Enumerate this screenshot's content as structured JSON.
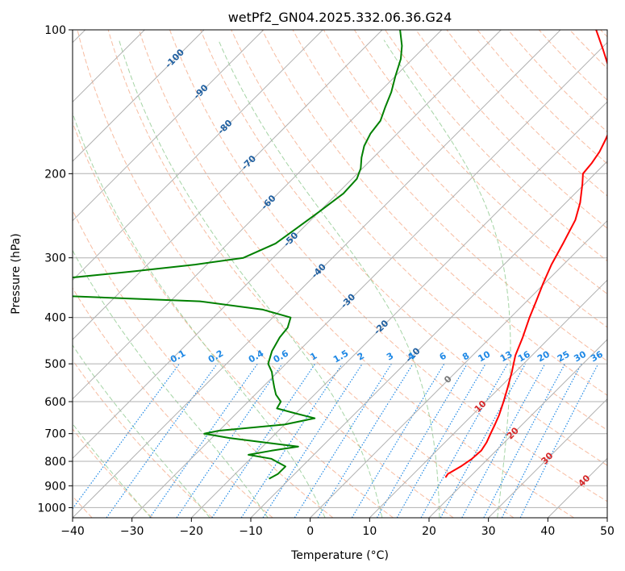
{
  "chart_data": {
    "type": "line",
    "title": "wetPf2_GN04.2025.332.06.36.G24",
    "xlabel": "Temperature (°C)",
    "ylabel": "Pressure (hPa)",
    "xlim": [
      -40,
      50
    ],
    "ylim": [
      1050,
      100
    ],
    "y_scale": "log",
    "grid": true,
    "x_ticks": [
      -40,
      -30,
      -20,
      -10,
      0,
      10,
      20,
      30,
      40,
      50
    ],
    "x_tick_labels": [
      "−40",
      "−30",
      "−20",
      "−10",
      "0",
      "10",
      "20",
      "30",
      "40",
      "50"
    ],
    "y_ticks": [
      1000,
      900,
      800,
      700,
      600,
      500,
      400,
      300,
      200,
      100
    ],
    "y_tick_labels": [
      "1000",
      "900",
      "800",
      "700",
      "600",
      "500",
      "400",
      "300",
      "200",
      "100"
    ],
    "colors": {
      "temperature": "#ff0000",
      "dewpoint": "#008000",
      "isotherm": "#b0b0b0",
      "dry_adiabat": "#f4a582",
      "moist_adiabat": "#8fc98f",
      "mixing_ratio": "#1e88e5",
      "isotherm_label": "#1f5fa0",
      "skew_label_red": "#d62728",
      "skew_label_gray": "#777777"
    },
    "series": [
      {
        "key": "temperature",
        "pressure": [
          865,
          850,
          820,
          790,
          760,
          730,
          700,
          670,
          640,
          600,
          560,
          520,
          480,
          440,
          400,
          370,
          340,
          310,
          280,
          250,
          230,
          210,
          200,
          190,
          180,
          170,
          160,
          150,
          140,
          130,
          120,
          110,
          100
        ],
        "values": [
          16.0,
          15.8,
          16.7,
          17.3,
          17.5,
          17.0,
          16.2,
          15.4,
          14.5,
          13.0,
          11.3,
          9.4,
          7.2,
          5.4,
          3.2,
          1.6,
          -0.2,
          -2.0,
          -3.6,
          -5.5,
          -7.6,
          -10.4,
          -12.0,
          -12.3,
          -12.9,
          -13.9,
          -15.1,
          -16.8,
          -19.2,
          -22.0,
          -25.5,
          -29.5,
          -34.0
        ]
      },
      {
        "key": "dewpoint",
        "pressure": [
          870,
          850,
          820,
          790,
          775,
          760,
          745,
          730,
          715,
          700,
          690,
          670,
          650,
          635,
          620,
          600,
          580,
          560,
          540,
          520,
          500,
          470,
          440,
          420,
          400,
          385,
          370,
          360,
          340,
          320,
          310,
          300,
          280,
          260,
          240,
          220,
          205,
          195,
          185,
          175,
          165,
          155,
          145,
          135,
          125,
          115,
          108,
          100
        ],
        "values": [
          -13.5,
          -12.8,
          -12.8,
          -16.5,
          -21.0,
          -17.8,
          -14.0,
          -20.5,
          -27.0,
          -32.0,
          -30.0,
          -20.0,
          -16.0,
          -20.0,
          -24.0,
          -24.5,
          -26.5,
          -28.0,
          -29.5,
          -31.0,
          -33.0,
          -34.5,
          -35.5,
          -35.8,
          -37.0,
          -43.0,
          -55.0,
          -80.0,
          -90.0,
          -71.0,
          -62.0,
          -55.0,
          -52.0,
          -51.0,
          -50.0,
          -49.0,
          -49.2,
          -50.3,
          -52.0,
          -53.5,
          -54.5,
          -55.0,
          -56.5,
          -58.0,
          -60.0,
          -62.0,
          -64.0,
          -67.0
        ]
      }
    ],
    "background_lines": {
      "isotherms": [
        -140,
        -130,
        -120,
        -110,
        -100,
        -90,
        -80,
        -70,
        -60,
        -50,
        -40,
        -30,
        -20,
        -10,
        0,
        10,
        20,
        30,
        40,
        50
      ],
      "dry_adiabats_c": [
        -40,
        -30,
        -20,
        -10,
        0,
        10,
        20,
        30,
        40,
        50,
        60,
        70,
        80,
        90,
        100,
        110,
        120,
        130,
        140,
        150,
        160,
        170,
        180,
        190,
        200
      ],
      "moist_adiabats_c": [
        -30,
        -20,
        -10,
        0,
        10,
        20,
        30
      ],
      "mixing_ratios_gkg": [
        0.1,
        0.2,
        0.4,
        0.6,
        1,
        1.5,
        2,
        3,
        4,
        6,
        8,
        10,
        13,
        16,
        20,
        25,
        30,
        36
      ],
      "mixing_ratio_labels": [
        "0.1",
        "0.2",
        "0.4",
        "0.6",
        "1",
        "1.5",
        "2",
        "3",
        "4",
        "6",
        "8",
        "10",
        "13",
        "16",
        "20",
        "25",
        "30",
        "36"
      ],
      "mixing_ratio_label_pressure": 500
    },
    "annotations": [
      {
        "text": "-100",
        "temp": -100,
        "pressure": 115,
        "color_key": "isotherm_label"
      },
      {
        "text": "-90",
        "temp": -90,
        "pressure": 135,
        "color_key": "isotherm_label"
      },
      {
        "text": "-80",
        "temp": -80,
        "pressure": 160,
        "color_key": "isotherm_label"
      },
      {
        "text": "-70",
        "temp": -70,
        "pressure": 190,
        "color_key": "isotherm_label"
      },
      {
        "text": "-60",
        "temp": -60,
        "pressure": 230,
        "color_key": "isotherm_label"
      },
      {
        "text": "-50",
        "temp": -50,
        "pressure": 275,
        "color_key": "isotherm_label"
      },
      {
        "text": "-40",
        "temp": -40,
        "pressure": 320,
        "color_key": "isotherm_label"
      },
      {
        "text": "-30",
        "temp": -30,
        "pressure": 370,
        "color_key": "isotherm_label"
      },
      {
        "text": "-20",
        "temp": -20,
        "pressure": 420,
        "color_key": "isotherm_label"
      },
      {
        "text": "-10",
        "temp": -10,
        "pressure": 480,
        "color_key": "isotherm_label"
      },
      {
        "text": "0",
        "temp": 0,
        "pressure": 540,
        "color_key": "skew_label_gray"
      },
      {
        "text": "10",
        "temp": 10,
        "pressure": 615,
        "color_key": "skew_label_red"
      },
      {
        "text": "20",
        "temp": 20,
        "pressure": 700,
        "color_key": "skew_label_red"
      },
      {
        "text": "30",
        "temp": 30,
        "pressure": 790,
        "color_key": "skew_label_red"
      },
      {
        "text": "40",
        "temp": 40,
        "pressure": 880,
        "color_key": "skew_label_red"
      }
    ]
  }
}
